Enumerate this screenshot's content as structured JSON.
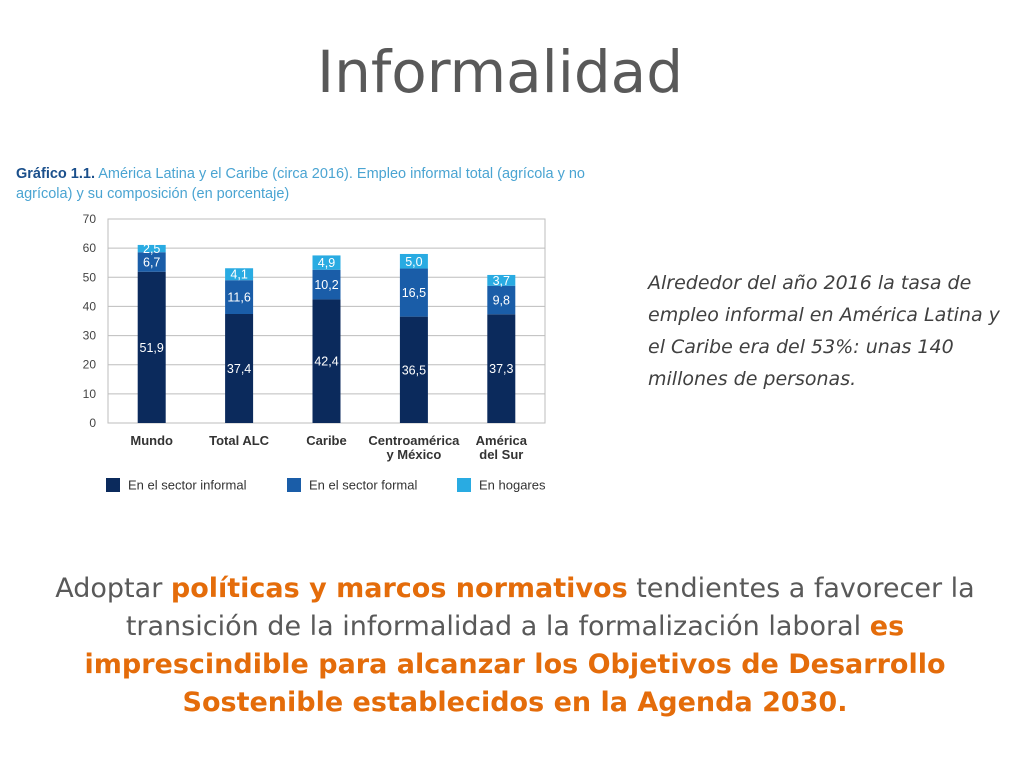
{
  "title": "Informalidad",
  "chart_caption": {
    "label": "Gráfico 1.1.",
    "text": " América Latina y el Caribe (circa 2016). Empleo informal total (agrícola y no agrícola) y su composición (en porcentaje)"
  },
  "side_note": "Alrededor del año 2016 la tasa de empleo informal en América Latina y el Caribe era del 53%: unas 140 millones de personas.",
  "bottom_text": {
    "part1": "Adoptar ",
    "part2_bold": "políticas y marcos normativos",
    "part3": " tendientes a favorecer la transición de la informalidad a la formalización laboral ",
    "part4_bold": "es imprescindible para alcanzar los Objetivos de Desarrollo Sostenible establecidos en la Agenda 2030."
  },
  "chart_data": {
    "type": "bar",
    "stacked": true,
    "categories": [
      [
        "Mundo"
      ],
      [
        "Total ALC"
      ],
      [
        "Caribe"
      ],
      [
        "Centroamérica",
        "y México"
      ],
      [
        "América",
        "del Sur"
      ]
    ],
    "series": [
      {
        "name": "En el sector informal",
        "color": "#0b2a5c",
        "values": [
          51.9,
          37.4,
          42.4,
          36.5,
          37.3
        ],
        "labels": [
          "51,9",
          "37,4",
          "42,4",
          "36,5",
          "37,3"
        ]
      },
      {
        "name": "En el sector formal",
        "color": "#1a5da8",
        "values": [
          6.7,
          11.6,
          10.2,
          16.5,
          9.8
        ],
        "labels": [
          "6,7",
          "11,6",
          "10,2",
          "16,5",
          "9,8"
        ]
      },
      {
        "name": "En hogares",
        "color": "#29abe2",
        "values": [
          2.5,
          4.1,
          4.9,
          5.0,
          3.7
        ],
        "labels": [
          "2,5",
          "4,1",
          "4,9",
          "5,0",
          "3,7"
        ]
      }
    ],
    "ylim": [
      0,
      70
    ],
    "yticks": [
      0,
      10,
      20,
      30,
      40,
      50,
      60,
      70
    ],
    "grid": true,
    "legend_position": "bottom",
    "xlabel": "",
    "ylabel": ""
  }
}
